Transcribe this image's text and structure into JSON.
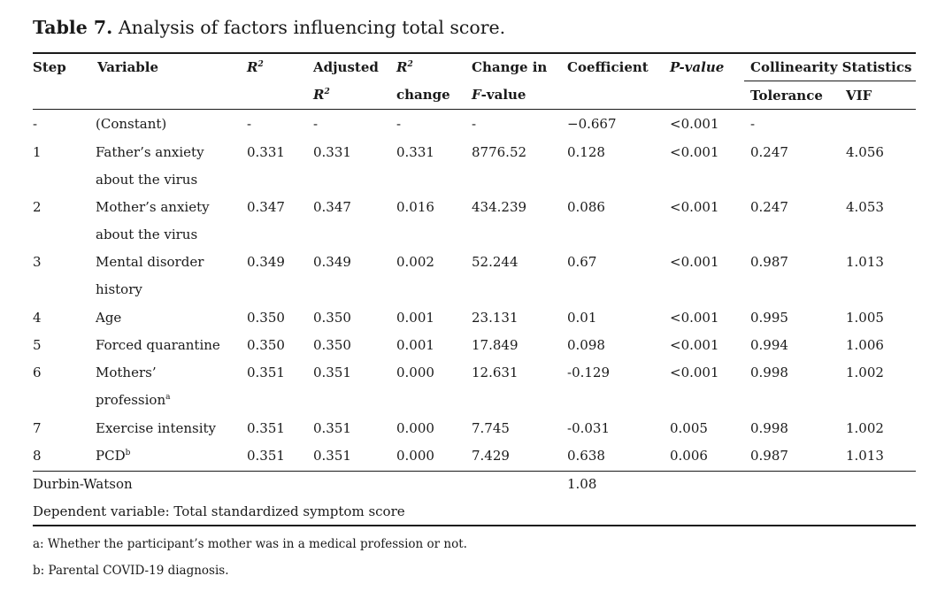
{
  "title": {
    "label": "Table 7.",
    "text": "Analysis of factors influencing total score."
  },
  "headers": {
    "step": "Step",
    "variable": "Variable",
    "r2": "R",
    "r2_sup": "2",
    "adj_line1": "Adjusted",
    "adj_line2": "R",
    "adj_sup": "2",
    "r2change_line1": "R",
    "r2change_sup": "2",
    "r2change_line2": "change",
    "fchange_line1": "Change in",
    "fchange_line2": "F-value",
    "coef": "Coefficient",
    "pvalue": "P-value",
    "collinearity": "Collinearity Statistics",
    "tolerance": "Tolerance",
    "vif": "VIF"
  },
  "rows": [
    {
      "step": "-",
      "var1": "(Constant)",
      "var2": "",
      "r2": "-",
      "adj": "-",
      "chg": "-",
      "fchg": "-",
      "coef": "−0.667",
      "p": "<0.001",
      "tol": "-",
      "vif": ""
    },
    {
      "step": "1",
      "var1": "Father’s anxiety",
      "var2": "about the virus",
      "r2": "0.331",
      "adj": "0.331",
      "chg": "0.331",
      "fchg": "8776.52",
      "coef": "0.128",
      "p": "<0.001",
      "tol": "0.247",
      "vif": "4.056"
    },
    {
      "step": "2",
      "var1": "Mother’s anxiety",
      "var2": "about the virus",
      "r2": "0.347",
      "adj": "0.347",
      "chg": "0.016",
      "fchg": "434.239",
      "coef": "0.086",
      "p": "<0.001",
      "tol": "0.247",
      "vif": "4.053"
    },
    {
      "step": "3",
      "var1": "Mental disorder",
      "var2": "history",
      "r2": "0.349",
      "adj": "0.349",
      "chg": "0.002",
      "fchg": "52.244",
      "coef": "0.67",
      "p": "<0.001",
      "tol": "0.987",
      "vif": "1.013"
    },
    {
      "step": "4",
      "var1": "Age",
      "var2": "",
      "r2": "0.350",
      "adj": "0.350",
      "chg": "0.001",
      "fchg": "23.131",
      "coef": "0.01",
      "p": "<0.001",
      "tol": "0.995",
      "vif": "1.005"
    },
    {
      "step": "5",
      "var1": "Forced quarantine",
      "var2": "",
      "r2": "0.350",
      "adj": "0.350",
      "chg": "0.001",
      "fchg": "17.849",
      "coef": "0.098",
      "p": "<0.001",
      "tol": "0.994",
      "vif": "1.006"
    },
    {
      "step": "6",
      "var1": "Mothers’",
      "var2": "profession",
      "var2_sup": "a",
      "r2": "0.351",
      "adj": "0.351",
      "chg": "0.000",
      "fchg": "12.631",
      "coef": "-0.129",
      "p": "<0.001",
      "tol": "0.998",
      "vif": "1.002"
    },
    {
      "step": "7",
      "var1": "Exercise intensity",
      "var2": "",
      "r2": "0.351",
      "adj": "0.351",
      "chg": "0.000",
      "fchg": "7.745",
      "coef": "-0.031",
      "p": "0.005",
      "tol": "0.998",
      "vif": "1.002"
    },
    {
      "step": "8",
      "var1": "PCD",
      "var1_sup": "b",
      "var2": "",
      "r2": "0.351",
      "adj": "0.351",
      "chg": "0.000",
      "fchg": "7.429",
      "coef": "0.638",
      "p": "0.006",
      "tol": "0.987",
      "vif": "1.013"
    }
  ],
  "durbin": {
    "label": "Durbin-Watson",
    "value": "1.08"
  },
  "dependent": "Dependent variable: Total standardized symptom score",
  "footnotes": [
    "a: Whether the participant’s mother was in a medical profession or not.",
    "b: Parental COVID-19 diagnosis."
  ]
}
